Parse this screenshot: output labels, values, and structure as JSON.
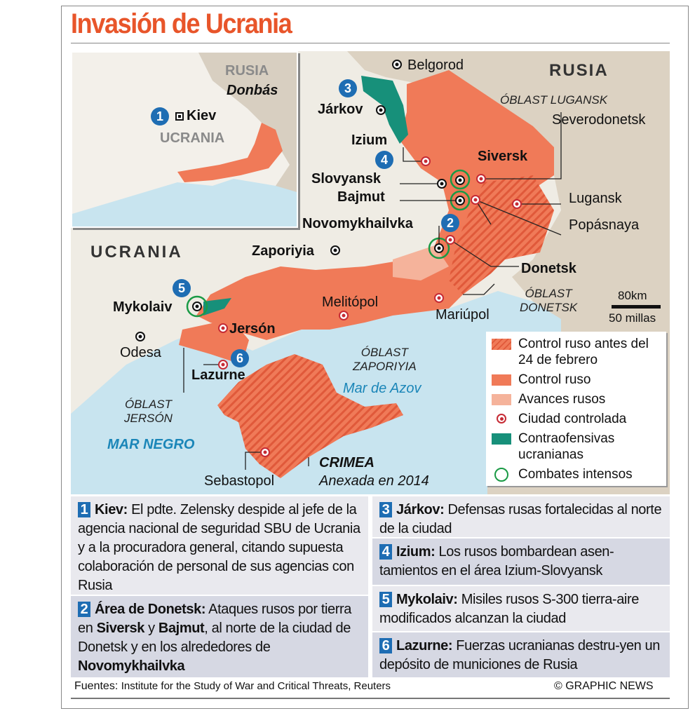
{
  "title": "Invasión de Ucrania",
  "inset": {
    "russia": "RUSIA",
    "donbas": "Donbás",
    "kiev": "Kiev",
    "ukraine": "UCRANIA",
    "badge": "1"
  },
  "map": {
    "russia": "RUSIA",
    "ukraine": "UCRANIA",
    "cities": {
      "belgorod": "Belgorod",
      "jarkov": "Járkov",
      "izium": "Izium",
      "siversk": "Siversk",
      "slovyansk": "Slovyansk",
      "bajmut": "Bajmut",
      "novomykhailvka": "Novomykhailvka",
      "severodonetsk": "Severodonetsk",
      "lugansk": "Lugansk",
      "popasnaya": "Popásnaya",
      "donetsk": "Donetsk",
      "zaporiyia": "Zaporiyia",
      "mykolaiv": "Mykolaiv",
      "odesa": "Odesa",
      "jerson": "Jersón",
      "lazurne": "Lazurne",
      "melitopol": "Melitópol",
      "mariupol": "Mariúpol",
      "sebastopol": "Sebastopol"
    },
    "oblasts": {
      "lugansk": "ÓBLAST LUGANSK",
      "donetsk_1": "ÓBLAST",
      "donetsk_2": "DONETSK",
      "zaporiyia_1": "ÓBLAST",
      "zaporiyia_2": "ZAPORIYIA",
      "jerson_1": "ÓBLAST",
      "jerson_2": "JERSÓN"
    },
    "seas": {
      "black": "MAR NEGRO",
      "azov": "Mar de Azov"
    },
    "crimea": {
      "name": "CRIMEA",
      "note": "Anexada en 2014"
    },
    "badges": [
      "2",
      "3",
      "4",
      "5",
      "6"
    ],
    "scale": {
      "km": "80km",
      "miles": "50 millas"
    }
  },
  "legend": {
    "items": [
      {
        "label": "Control ruso antes del 24 de febrero",
        "color": "#ef7650",
        "hatched": true
      },
      {
        "label": "Control ruso",
        "color": "#f07a58"
      },
      {
        "label": "Avances rusos",
        "color": "#f5b39b"
      },
      {
        "label": "Ciudad controlada",
        "icon": "target-dot-icon",
        "color": "#c62b35"
      },
      {
        "label": "Contraofensivas ucranianas",
        "color": "#17907a"
      },
      {
        "label": "Combates intensos",
        "icon": "ring-icon",
        "color": "#1a9a45"
      }
    ]
  },
  "notes": [
    {
      "num": "1",
      "title": "Kiev:",
      "parts": [
        " El pdte. Zelensky despide al jefe de la agencia nacional de seguridad SBU de Ucrania y a la procuradora general, citando supuesta colaboración de personal de sus agencias con Rusia"
      ]
    },
    {
      "num": "2",
      "title": "Área de Donetsk:",
      "parts": [
        " Ataques rusos por tierra en ",
        "Siversk",
        " y ",
        "Bajmut",
        ", al norte de la ciudad de Donetsk y en los alrededores de ",
        "Novomykhailvka"
      ]
    },
    {
      "num": "3",
      "title": "Járkov:",
      "parts": [
        " Defensas rusas fortalecidas al norte de la ciudad"
      ]
    },
    {
      "num": "4",
      "title": "Izium:",
      "parts": [
        " Los rusos bombardean asen-tamientos en el área Izium-Slovyansk"
      ]
    },
    {
      "num": "5",
      "title": "Mykolaiv:",
      "parts": [
        " Misiles rusos S-300 tierra-aire modificados alcanzan la ciudad"
      ]
    },
    {
      "num": "6",
      "title": "Lazurne:",
      "parts": [
        " Fuerzas ucranianas destru-yen un depósito de municiones de Rusia"
      ]
    }
  ],
  "footer": {
    "sources_label": "Fuentes:",
    "sources": "Institute for the Study of War and Critical Threats, Reuters",
    "credit": "© GRAPHIC NEWS"
  },
  "colors": {
    "title": "#e8552a",
    "sea": "#c8e4ef",
    "land": "#efece4",
    "russia_land": "#dcd2c2",
    "occupied": "#f07a58",
    "counter": "#17907a",
    "badge": "#1e6db3"
  }
}
